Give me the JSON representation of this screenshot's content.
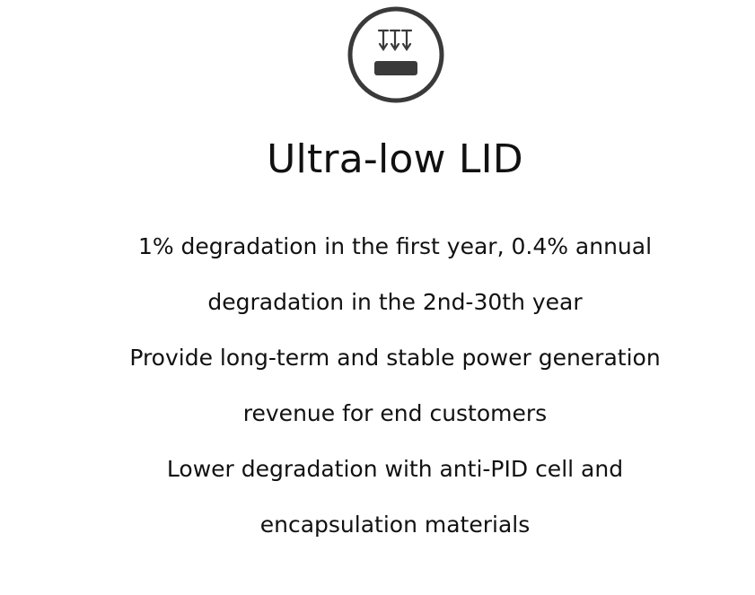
{
  "feature": {
    "icon": "light-down-arrows-on-panel-icon",
    "title": "Ultra-low LID",
    "lines": [
      "1% degradation in the first year, 0.4% annual",
      "degradation in the 2nd-30th year",
      "Provide long-term and stable power generation",
      "revenue for end customers",
      "Lower degradation with anti-PID cell and",
      "encapsulation materials"
    ]
  },
  "colors": {
    "text": "#111111",
    "icon_stroke": "#3a3a3a",
    "background": "#ffffff"
  }
}
